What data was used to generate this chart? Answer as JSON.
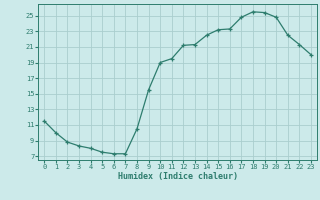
{
  "x": [
    0,
    1,
    2,
    3,
    4,
    5,
    6,
    7,
    8,
    9,
    10,
    11,
    12,
    13,
    14,
    15,
    16,
    17,
    18,
    19,
    20,
    21,
    22,
    23
  ],
  "y": [
    11.5,
    10.0,
    8.8,
    8.3,
    8.0,
    7.5,
    7.3,
    7.3,
    10.5,
    15.5,
    19.0,
    19.5,
    21.2,
    21.3,
    22.5,
    23.2,
    23.3,
    24.8,
    25.5,
    25.4,
    24.8,
    22.5,
    21.3,
    20.0
  ],
  "xlabel": "Humidex (Indice chaleur)",
  "line_color": "#2e7d6e",
  "marker": "+",
  "bg_color": "#cceaea",
  "grid_color": "#aacece",
  "text_color": "#2e7d6e",
  "ylim": [
    6.5,
    26.5
  ],
  "yticks": [
    7,
    9,
    11,
    13,
    15,
    17,
    19,
    21,
    23,
    25
  ],
  "xlim": [
    -0.5,
    23.5
  ],
  "xlabel_fontsize": 6.0,
  "tick_fontsize": 5.0
}
